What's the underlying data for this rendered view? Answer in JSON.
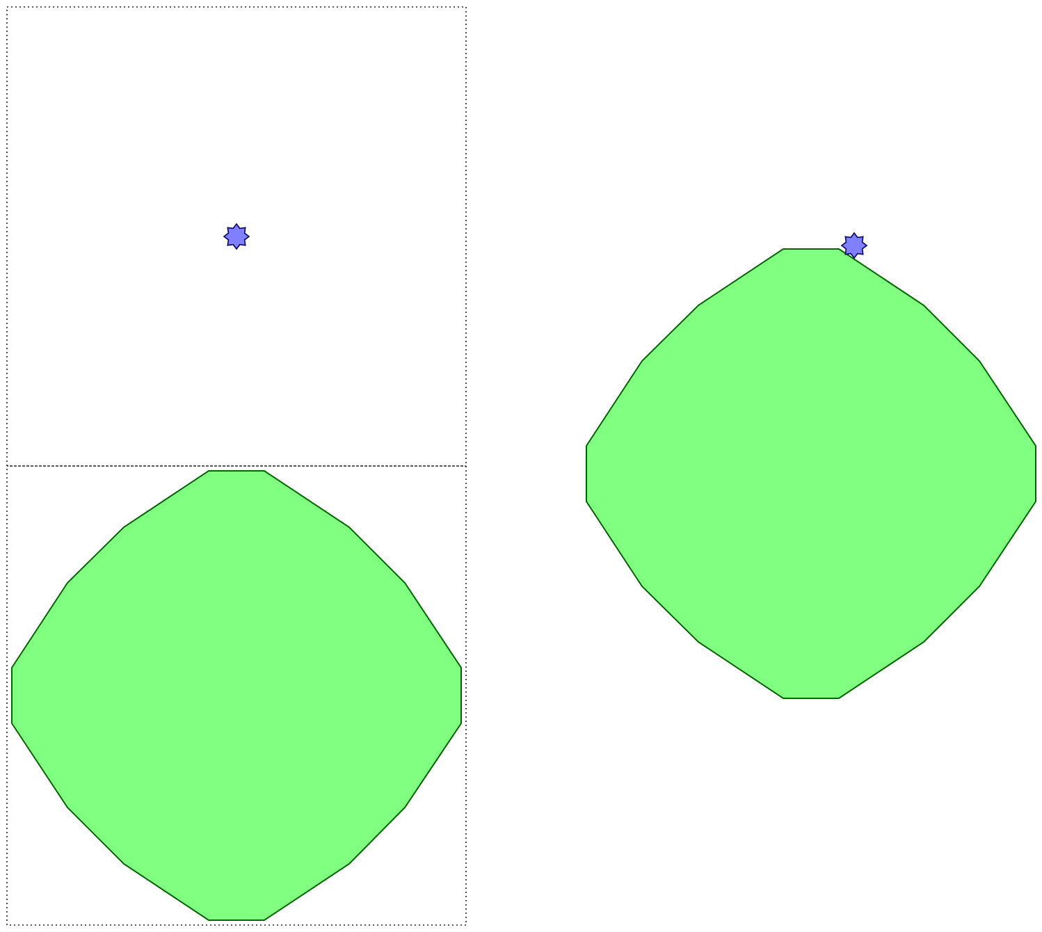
{
  "diagram": {
    "description_free": true,
    "colors": {
      "shape_fill": "#80ff80",
      "shape_stroke": "#006400",
      "marker_fill": "#8080ff",
      "marker_stroke": "#000066",
      "guide_stroke": "#222222",
      "background": "#ffffff"
    },
    "icons": {
      "marker": "eight-point-star-icon"
    },
    "left_panel": {
      "guide_boxes": 2,
      "shape": "green-polygon",
      "marker": "eight-point-star-icon"
    },
    "right_panel": {
      "shape": "green-polygon",
      "marker": "eight-point-star-icon"
    }
  }
}
